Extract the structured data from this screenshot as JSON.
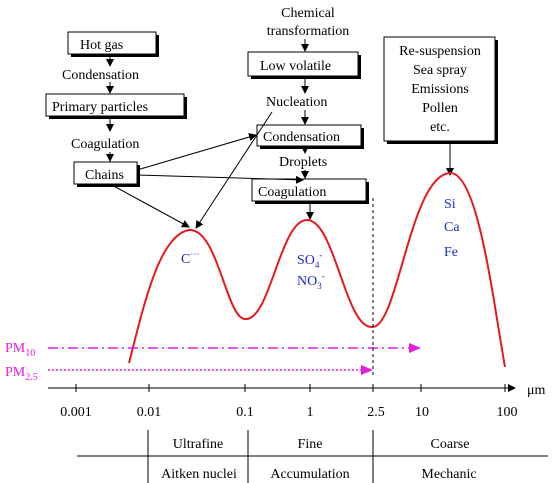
{
  "left_chain": {
    "hot_gas": "Hot gas",
    "condensation": "Condensation",
    "primary_particles": "Primary particles",
    "coagulation": "Coagulation",
    "chains": "Chains"
  },
  "middle_chain": {
    "chemical_line1": "Chemical",
    "chemical_line2": "transformation",
    "low_volatile": "Low volatile",
    "nucleation": "Nucleation",
    "condensation": "Condensation",
    "droplets": "Droplets",
    "coagulation": "Coagulation"
  },
  "right_box": {
    "lines": [
      "Re-suspension",
      "Sea spray",
      "Emissions",
      "Pollen",
      "etc."
    ]
  },
  "peak_labels": {
    "carbon": "C",
    "carbon_sup": "···",
    "sulfate": "SO",
    "sulfate_sub": "4",
    "sulfate_sup": "-",
    "nitrate": "NO",
    "nitrate_sub": "3",
    "nitrate_sup": "-",
    "si": "Si",
    "ca": "Ca",
    "fe": "Fe"
  },
  "pm_labels": {
    "pm10": "PM",
    "pm10_sub": "10",
    "pm25": "PM",
    "pm25_sub": "2.5"
  },
  "axis": {
    "unit": "μm",
    "ticks": [
      "0.001",
      "0.01",
      "0.1",
      "1",
      "2.5",
      "10",
      "100"
    ]
  },
  "size_classes": {
    "upper": [
      "Ultrafine",
      "Fine",
      "Coarse"
    ],
    "lower": [
      "Aitken nuclei",
      "Accumulation",
      "Mechanic"
    ]
  },
  "colors": {
    "curve": "#e41a1c",
    "pm": "#e21ee2",
    "ions": "#1f2bcf"
  }
}
